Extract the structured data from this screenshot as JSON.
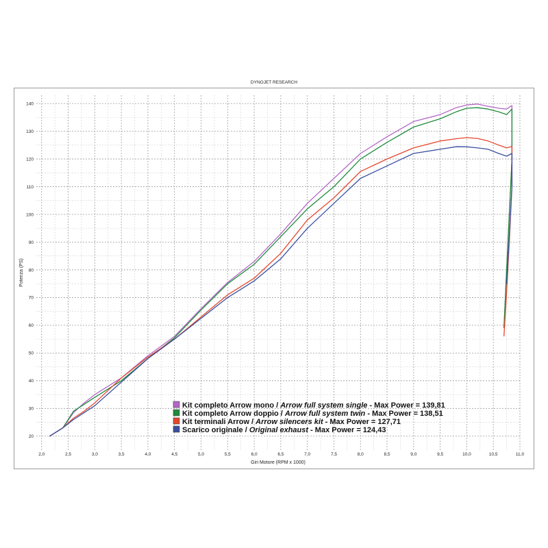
{
  "chart_data": {
    "type": "line",
    "title": "DYNOJET RESEARCH",
    "xlabel": "Giri Motore (RPM x 1000)",
    "ylabel": "Potenza (PS)",
    "xlim": [
      1.9,
      11.0
    ],
    "ylim": [
      15,
      143
    ],
    "x_ticks": [
      "2,0",
      "2,5",
      "3,0",
      "3,5",
      "4,0",
      "4,5",
      "5,0",
      "5,5",
      "6,0",
      "6,5",
      "7,0",
      "7,5",
      "8,0",
      "8,5",
      "9,0",
      "9,5",
      "10,0",
      "10,5",
      "11,0"
    ],
    "y_ticks": [
      20,
      30,
      40,
      50,
      60,
      70,
      80,
      90,
      100,
      110,
      120,
      130,
      140
    ],
    "grid": true,
    "legend_position": "bottom-center",
    "series": [
      {
        "label_normal": "Kit completo Arrow mono / ",
        "label_italic": "Arrow full system single",
        "label_suffix": " - Max Power = 139,81",
        "color": "#b366c6",
        "points": [
          [
            2.15,
            20
          ],
          [
            2.4,
            23
          ],
          [
            2.6,
            28.5
          ],
          [
            2.8,
            32
          ],
          [
            3.0,
            35
          ],
          [
            3.5,
            41
          ],
          [
            4.0,
            49
          ],
          [
            4.5,
            56
          ],
          [
            5.0,
            66
          ],
          [
            5.5,
            75.5
          ],
          [
            6.0,
            83
          ],
          [
            6.5,
            93
          ],
          [
            7.0,
            104
          ],
          [
            7.5,
            113
          ],
          [
            8.0,
            122
          ],
          [
            8.5,
            128
          ],
          [
            9.0,
            133.5
          ],
          [
            9.5,
            136
          ],
          [
            9.8,
            138.5
          ],
          [
            10.0,
            139.5
          ],
          [
            10.2,
            139.81
          ],
          [
            10.4,
            139
          ],
          [
            10.6,
            138.3
          ],
          [
            10.75,
            138
          ],
          [
            10.85,
            139.3
          ],
          [
            10.85,
            120
          ],
          [
            10.8,
            100
          ],
          [
            10.75,
            80
          ],
          [
            10.7,
            59
          ]
        ]
      },
      {
        "label_normal": "Kit completo Arrow doppio / ",
        "label_italic": "Arrow full system twin",
        "label_suffix": " - Max Power = 138,51",
        "color": "#1f8a3c",
        "points": [
          [
            2.15,
            20
          ],
          [
            2.4,
            23
          ],
          [
            2.6,
            29
          ],
          [
            2.8,
            31.5
          ],
          [
            3.0,
            34
          ],
          [
            3.5,
            40
          ],
          [
            4.0,
            48
          ],
          [
            4.5,
            55.5
          ],
          [
            5.0,
            65.5
          ],
          [
            5.5,
            75
          ],
          [
            6.0,
            82
          ],
          [
            6.5,
            92
          ],
          [
            7.0,
            102
          ],
          [
            7.5,
            110
          ],
          [
            8.0,
            120
          ],
          [
            8.5,
            126
          ],
          [
            9.0,
            131.5
          ],
          [
            9.5,
            134.5
          ],
          [
            9.8,
            137
          ],
          [
            10.0,
            138.3
          ],
          [
            10.2,
            138.51
          ],
          [
            10.4,
            138
          ],
          [
            10.6,
            137
          ],
          [
            10.75,
            136
          ],
          [
            10.85,
            138
          ],
          [
            10.85,
            120
          ],
          [
            10.8,
            100
          ],
          [
            10.75,
            80
          ],
          [
            10.7,
            59
          ]
        ]
      },
      {
        "label_normal": "Kit terminali Arrow / ",
        "label_italic": "Arrow silencers kit",
        "label_suffix": " - Max Power = 127,71",
        "color": "#e4472d",
        "points": [
          [
            2.15,
            20
          ],
          [
            2.4,
            23
          ],
          [
            2.6,
            26.5
          ],
          [
            2.8,
            29
          ],
          [
            3.0,
            32
          ],
          [
            3.5,
            41
          ],
          [
            4.0,
            48.5
          ],
          [
            4.5,
            55
          ],
          [
            5.0,
            63
          ],
          [
            5.5,
            71
          ],
          [
            6.0,
            77
          ],
          [
            6.5,
            86
          ],
          [
            7.0,
            98
          ],
          [
            7.5,
            106
          ],
          [
            8.0,
            115.5
          ],
          [
            8.5,
            120
          ],
          [
            9.0,
            124
          ],
          [
            9.5,
            126.5
          ],
          [
            9.8,
            127.3
          ],
          [
            10.0,
            127.71
          ],
          [
            10.2,
            127.4
          ],
          [
            10.4,
            126.5
          ],
          [
            10.6,
            125
          ],
          [
            10.75,
            124
          ],
          [
            10.85,
            124.5
          ],
          [
            10.85,
            110
          ],
          [
            10.8,
            90
          ],
          [
            10.75,
            72
          ],
          [
            10.7,
            56
          ]
        ]
      },
      {
        "label_normal": "Scarico originale / ",
        "label_italic": "Original exhaust",
        "label_suffix": " - Max Power = 124,43",
        "color": "#3a4fa0",
        "points": [
          [
            2.15,
            20
          ],
          [
            2.4,
            23
          ],
          [
            2.6,
            26
          ],
          [
            2.8,
            28.5
          ],
          [
            3.0,
            31
          ],
          [
            3.5,
            39.5
          ],
          [
            4.0,
            48
          ],
          [
            4.5,
            55
          ],
          [
            5.0,
            62.5
          ],
          [
            5.5,
            70
          ],
          [
            6.0,
            76
          ],
          [
            6.5,
            84
          ],
          [
            7.0,
            95
          ],
          [
            7.5,
            104
          ],
          [
            8.0,
            113
          ],
          [
            8.5,
            117.5
          ],
          [
            9.0,
            122
          ],
          [
            9.5,
            123.5
          ],
          [
            9.8,
            124.43
          ],
          [
            10.0,
            124.4
          ],
          [
            10.2,
            124
          ],
          [
            10.4,
            123.5
          ],
          [
            10.6,
            122
          ],
          [
            10.75,
            121
          ],
          [
            10.85,
            122
          ],
          [
            10.85,
            110
          ],
          [
            10.8,
            92
          ],
          [
            10.75,
            75
          ]
        ]
      }
    ]
  }
}
